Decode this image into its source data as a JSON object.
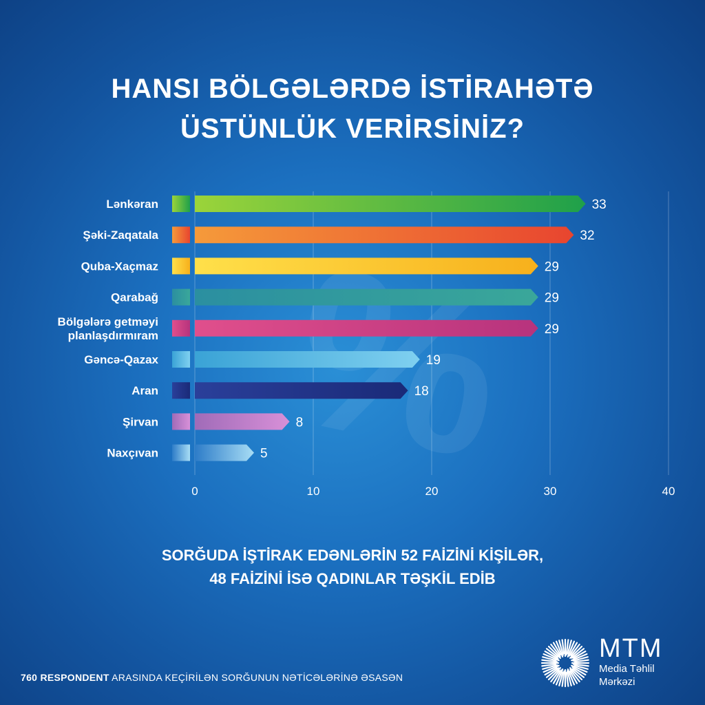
{
  "title": {
    "line1": "HANSI BÖLGƏLƏRDƏ İSTİRAHƏTƏ",
    "line2": "ÜSTÜNLÜK VERİRSİNİZ?"
  },
  "watermark": "%",
  "chart_data": {
    "type": "bar",
    "orientation": "horizontal",
    "categories": [
      "Lənkəran",
      "Şəki-Zaqatala",
      "Quba-Xaçmaz",
      "Qarabağ",
      "Bölgələrə getməyi planlaşdırmıram",
      "Gəncə-Qazax",
      "Aran",
      "Şirvan",
      "Naxçıvan"
    ],
    "values": [
      33,
      32,
      29,
      29,
      29,
      19,
      18,
      8,
      5
    ],
    "colors": [
      [
        "#9bd43a",
        "#1fa04a"
      ],
      [
        "#f59a3a",
        "#e8452f"
      ],
      [
        "#ffe04a",
        "#f7b01c"
      ],
      [
        "#2b8fa0",
        "#3aa79a"
      ],
      [
        "#e04f8c",
        "#b7337d"
      ],
      [
        "#3aa3d6",
        "#7fd0f0"
      ],
      [
        "#2a3f9a",
        "#1a2a78"
      ],
      [
        "#a06bb8",
        "#d890d8"
      ],
      [
        "#2d7cc8",
        "#a8ddf5"
      ]
    ],
    "xlim": [
      0,
      40
    ],
    "xticks": [
      0,
      10,
      20,
      30,
      40
    ],
    "grid": true
  },
  "note": {
    "line1": "SORĞUDA İŞTİRAK EDƏNLƏRİN 52 FAİZİNİ KİŞİLƏR,",
    "line2": "48 FAİZİNİ İSƏ QADINLAR TƏŞKİL EDİB"
  },
  "footer": {
    "bold": "760 RESPONDENT",
    "rest": "ARASINDA KEÇİRİLƏN SORĞUNUN NƏTİCƏLƏRİNƏ ƏSASƏN"
  },
  "logo": {
    "brand": "MTM",
    "line1": "Media Təhlil",
    "line2": "Mərkəzi"
  }
}
